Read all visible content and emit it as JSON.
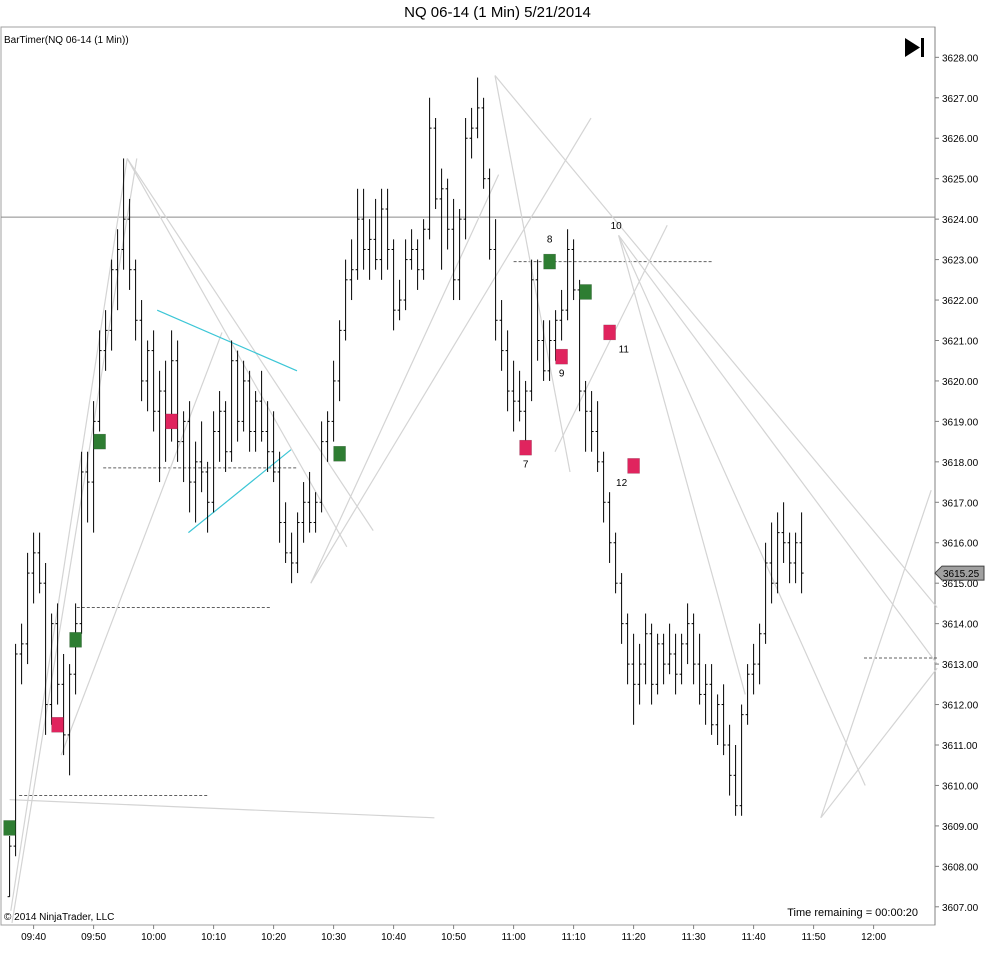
{
  "chart_data": {
    "type": "candlestick",
    "title": "NQ 06-14 (1 Min)  5/21/2014",
    "indicator_label": "BarTimer(NQ 06-14 (1 Min))",
    "copyright": "© 2014 NinjaTrader, LLC",
    "time_remaining": "Time remaining = 00:00:20",
    "last_price_label": "3615.25",
    "last_price": 3615.25,
    "ylim": [
      3606.55,
      3628.75
    ],
    "y_ticks": [
      "3607.00",
      "3608.00",
      "3609.00",
      "3610.00",
      "3611.00",
      "3612.00",
      "3613.00",
      "3614.00",
      "3615.00",
      "3616.00",
      "3617.00",
      "3618.00",
      "3619.00",
      "3620.00",
      "3621.00",
      "3622.00",
      "3623.00",
      "3624.00",
      "3625.00",
      "3626.00",
      "3627.00",
      "3628.00"
    ],
    "x_ticks": [
      {
        "label": "09:40",
        "bar": 4
      },
      {
        "label": "09:50",
        "bar": 14
      },
      {
        "label": "10:00",
        "bar": 24
      },
      {
        "label": "10:10",
        "bar": 34
      },
      {
        "label": "10:20",
        "bar": 44
      },
      {
        "label": "10:30",
        "bar": 54
      },
      {
        "label": "10:40",
        "bar": 64
      },
      {
        "label": "10:50",
        "bar": 74
      },
      {
        "label": "11:00",
        "bar": 84
      },
      {
        "label": "11:10",
        "bar": 94
      },
      {
        "label": "11:20",
        "bar": 104
      },
      {
        "label": "11:30",
        "bar": 114
      },
      {
        "label": "11:40",
        "bar": 124
      },
      {
        "label": "11:50",
        "bar": 134
      },
      {
        "label": "12:00",
        "bar": 144
      }
    ],
    "first_bar_time": "09:36",
    "bars": [
      [
        3607.25,
        3608.75,
        3607.25,
        3608.5
      ],
      [
        3608.5,
        3613.5,
        3608.25,
        3613.25
      ],
      [
        3613.25,
        3614.0,
        3612.5,
        3613.5
      ],
      [
        3613.5,
        3615.75,
        3613.0,
        3615.25
      ],
      [
        3615.25,
        3616.25,
        3614.5,
        3615.75
      ],
      [
        3615.75,
        3616.25,
        3614.75,
        3615.0
      ],
      [
        3615.0,
        3615.5,
        3611.25,
        3612.0
      ],
      [
        3612.0,
        3614.25,
        3611.5,
        3614.0
      ],
      [
        3614.0,
        3614.5,
        3612.0,
        3612.5
      ],
      [
        3612.5,
        3613.25,
        3610.75,
        3611.25
      ],
      [
        3611.25,
        3613.0,
        3610.25,
        3612.75
      ],
      [
        3612.75,
        3614.5,
        3612.25,
        3614.0
      ],
      [
        3614.0,
        3618.25,
        3613.75,
        3617.75
      ],
      [
        3617.75,
        3618.25,
        3616.5,
        3617.5
      ],
      [
        3617.5,
        3619.5,
        3616.25,
        3619.0
      ],
      [
        3619.0,
        3621.25,
        3618.75,
        3620.75
      ],
      [
        3620.75,
        3621.75,
        3620.25,
        3621.25
      ],
      [
        3621.25,
        3623.0,
        3620.75,
        3622.75
      ],
      [
        3622.75,
        3623.75,
        3621.75,
        3623.25
      ],
      [
        3623.25,
        3625.5,
        3622.75,
        3624.0
      ],
      [
        3624.0,
        3624.5,
        3622.25,
        3622.75
      ],
      [
        3622.75,
        3623.0,
        3621.0,
        3621.5
      ],
      [
        3621.5,
        3622.0,
        3619.5,
        3620.0
      ],
      [
        3620.0,
        3621.0,
        3619.25,
        3620.75
      ],
      [
        3620.75,
        3621.25,
        3618.75,
        3619.25
      ],
      [
        3619.25,
        3620.25,
        3617.5,
        3619.75
      ],
      [
        3619.75,
        3620.5,
        3618.0,
        3619.0
      ],
      [
        3619.0,
        3621.25,
        3618.5,
        3620.5
      ],
      [
        3620.5,
        3621.0,
        3618.0,
        3618.5
      ],
      [
        3618.5,
        3619.25,
        3617.5,
        3619.0
      ],
      [
        3619.0,
        3619.5,
        3616.75,
        3617.5
      ],
      [
        3617.5,
        3618.5,
        3616.5,
        3618.0
      ],
      [
        3618.0,
        3619.0,
        3617.25,
        3617.75
      ],
      [
        3617.75,
        3618.0,
        3616.25,
        3617.0
      ],
      [
        3617.0,
        3619.25,
        3616.75,
        3618.75
      ],
      [
        3618.75,
        3619.75,
        3618.0,
        3619.25
      ],
      [
        3619.25,
        3619.5,
        3617.75,
        3618.25
      ],
      [
        3618.25,
        3621.0,
        3618.0,
        3620.5
      ],
      [
        3620.5,
        3620.75,
        3618.5,
        3619.0
      ],
      [
        3619.0,
        3620.5,
        3618.75,
        3620.0
      ],
      [
        3620.0,
        3620.25,
        3618.25,
        3618.75
      ],
      [
        3618.75,
        3619.75,
        3618.25,
        3619.5
      ],
      [
        3619.5,
        3620.25,
        3618.5,
        3618.75
      ],
      [
        3618.75,
        3619.5,
        3617.75,
        3618.25
      ],
      [
        3618.25,
        3619.25,
        3617.5,
        3617.75
      ],
      [
        3617.75,
        3618.25,
        3616.0,
        3616.5
      ],
      [
        3616.5,
        3617.0,
        3615.5,
        3615.75
      ],
      [
        3615.75,
        3616.25,
        3615.0,
        3615.5
      ],
      [
        3615.5,
        3616.75,
        3615.25,
        3616.5
      ],
      [
        3616.5,
        3617.5,
        3616.0,
        3617.0
      ],
      [
        3617.0,
        3617.75,
        3616.25,
        3616.5
      ],
      [
        3616.5,
        3617.25,
        3616.25,
        3617.0
      ],
      [
        3617.0,
        3619.0,
        3616.75,
        3618.5
      ],
      [
        3618.5,
        3619.25,
        3618.0,
        3619.0
      ],
      [
        3619.0,
        3620.5,
        3618.5,
        3620.0
      ],
      [
        3620.0,
        3621.5,
        3619.5,
        3621.25
      ],
      [
        3621.25,
        3623.0,
        3621.0,
        3622.5
      ],
      [
        3622.5,
        3623.5,
        3622.0,
        3622.75
      ],
      [
        3622.75,
        3624.75,
        3622.5,
        3624.0
      ],
      [
        3624.0,
        3624.75,
        3622.75,
        3623.25
      ],
      [
        3623.25,
        3624.0,
        3622.5,
        3623.5
      ],
      [
        3623.5,
        3624.5,
        3622.75,
        3623.0
      ],
      [
        3623.0,
        3624.75,
        3622.5,
        3624.25
      ],
      [
        3624.25,
        3624.75,
        3622.75,
        3623.25
      ],
      [
        3623.25,
        3623.5,
        3621.25,
        3621.75
      ],
      [
        3621.75,
        3622.5,
        3621.5,
        3622.0
      ],
      [
        3622.0,
        3623.5,
        3621.75,
        3623.0
      ],
      [
        3623.0,
        3623.75,
        3622.75,
        3623.25
      ],
      [
        3623.25,
        3623.5,
        3622.25,
        3622.75
      ],
      [
        3622.75,
        3624.0,
        3622.5,
        3623.75
      ],
      [
        3623.75,
        3627.0,
        3623.5,
        3626.25
      ],
      [
        3626.25,
        3626.5,
        3624.25,
        3624.5
      ],
      [
        3624.5,
        3625.25,
        3622.75,
        3624.75
      ],
      [
        3624.75,
        3625.0,
        3623.25,
        3623.75
      ],
      [
        3623.75,
        3624.5,
        3622.0,
        3622.5
      ],
      [
        3622.5,
        3624.25,
        3622.0,
        3624.0
      ],
      [
        3624.0,
        3626.5,
        3623.5,
        3626.0
      ],
      [
        3626.0,
        3626.75,
        3625.5,
        3626.25
      ],
      [
        3626.25,
        3627.5,
        3626.0,
        3626.75
      ],
      [
        3626.75,
        3627.0,
        3624.75,
        3625.0
      ],
      [
        3625.0,
        3625.25,
        3623.0,
        3623.25
      ],
      [
        3623.25,
        3624.0,
        3621.0,
        3621.5
      ],
      [
        3621.5,
        3622.0,
        3620.25,
        3620.75
      ],
      [
        3620.75,
        3621.25,
        3619.25,
        3619.75
      ],
      [
        3619.75,
        3620.5,
        3618.75,
        3619.5
      ],
      [
        3619.5,
        3620.25,
        3619.0,
        3619.25
      ],
      [
        3619.25,
        3620.0,
        3618.5,
        3619.75
      ],
      [
        3619.75,
        3623.0,
        3619.5,
        3622.5
      ],
      [
        3622.5,
        3623.0,
        3620.5,
        3621.0
      ],
      [
        3621.0,
        3621.5,
        3620.0,
        3620.25
      ],
      [
        3620.25,
        3621.5,
        3620.0,
        3621.0
      ],
      [
        3621.0,
        3621.75,
        3620.5,
        3621.5
      ],
      [
        3621.5,
        3622.25,
        3621.0,
        3621.75
      ],
      [
        3621.75,
        3623.75,
        3621.5,
        3623.25
      ],
      [
        3623.25,
        3623.5,
        3622.0,
        3622.25
      ],
      [
        3622.25,
        3622.5,
        3619.25,
        3619.75
      ],
      [
        3619.75,
        3620.0,
        3618.25,
        3619.25
      ],
      [
        3619.25,
        3619.75,
        3618.25,
        3618.75
      ],
      [
        3618.75,
        3619.5,
        3617.75,
        3618.0
      ],
      [
        3618.0,
        3618.25,
        3616.5,
        3617.0
      ],
      [
        3617.0,
        3617.25,
        3615.5,
        3616.0
      ],
      [
        3616.0,
        3616.25,
        3614.75,
        3615.0
      ],
      [
        3615.0,
        3615.25,
        3613.5,
        3614.0
      ],
      [
        3614.0,
        3614.25,
        3612.5,
        3613.0
      ],
      [
        3613.0,
        3613.75,
        3611.5,
        3612.5
      ],
      [
        3612.5,
        3613.5,
        3612.0,
        3613.0
      ],
      [
        3613.0,
        3614.25,
        3612.5,
        3613.75
      ],
      [
        3613.75,
        3614.0,
        3612.0,
        3612.5
      ],
      [
        3612.5,
        3613.75,
        3612.25,
        3613.5
      ],
      [
        3613.5,
        3613.75,
        3612.5,
        3613.0
      ],
      [
        3613.0,
        3614.0,
        3612.75,
        3613.25
      ],
      [
        3613.25,
        3613.75,
        3612.25,
        3612.75
      ],
      [
        3612.75,
        3613.75,
        3612.5,
        3613.5
      ],
      [
        3613.5,
        3614.5,
        3613.0,
        3614.0
      ],
      [
        3614.0,
        3614.25,
        3612.5,
        3613.0
      ],
      [
        3613.0,
        3613.75,
        3612.0,
        3612.25
      ],
      [
        3612.25,
        3613.0,
        3611.5,
        3612.5
      ],
      [
        3612.5,
        3613.0,
        3611.25,
        3611.5
      ],
      [
        3611.5,
        3612.25,
        3611.0,
        3612.0
      ],
      [
        3612.0,
        3612.5,
        3610.75,
        3611.0
      ],
      [
        3611.0,
        3611.5,
        3609.75,
        3610.25
      ],
      [
        3610.25,
        3611.0,
        3609.25,
        3609.5
      ],
      [
        3609.5,
        3612.0,
        3609.25,
        3611.75
      ],
      [
        3611.75,
        3613.0,
        3611.5,
        3612.75
      ],
      [
        3612.75,
        3613.5,
        3612.25,
        3613.0
      ],
      [
        3613.0,
        3614.0,
        3612.5,
        3613.75
      ],
      [
        3613.75,
        3616.0,
        3613.5,
        3615.5
      ],
      [
        3615.5,
        3616.5,
        3614.5,
        3615.0
      ],
      [
        3615.0,
        3616.75,
        3614.75,
        3616.25
      ],
      [
        3616.25,
        3617.0,
        3615.5,
        3616.0
      ],
      [
        3616.0,
        3616.25,
        3615.0,
        3615.5
      ],
      [
        3615.5,
        3616.25,
        3615.0,
        3616.0
      ],
      [
        3616.0,
        3616.75,
        3614.75,
        3615.25
      ]
    ],
    "signals": [
      {
        "bar": 0,
        "price": 3608.95,
        "color": "#2e7d32",
        "label": ""
      },
      {
        "bar": 8,
        "price": 3611.5,
        "color": "#e0245e",
        "label": ""
      },
      {
        "bar": 11,
        "price": 3613.6,
        "color": "#2e7d32",
        "label": ""
      },
      {
        "bar": 15,
        "price": 3618.5,
        "color": "#2e7d32",
        "label": ""
      },
      {
        "bar": 27,
        "price": 3619.0,
        "color": "#e0245e",
        "label": ""
      },
      {
        "bar": 55,
        "price": 3618.2,
        "color": "#2e7d32",
        "label": ""
      },
      {
        "bar": 86,
        "price": 3618.35,
        "color": "#e0245e",
        "label": "7"
      },
      {
        "bar": 90,
        "price": 3622.95,
        "color": "#2e7d32",
        "label": "8"
      },
      {
        "bar": 92,
        "price": 3620.6,
        "color": "#e0245e",
        "label": "9"
      },
      {
        "bar": 96,
        "price": 3622.2,
        "color": "#2e7d32",
        "label": ""
      },
      {
        "bar": 100,
        "price": 3621.2,
        "color": "#e0245e",
        "label": "11"
      },
      {
        "bar": 104,
        "price": 3617.9,
        "color": "#e0245e",
        "label": "12"
      }
    ],
    "text_labels": [
      {
        "bar": 100,
        "price": 3623.85,
        "text": "10"
      }
    ],
    "trend_lines": [
      {
        "b1": 0.2,
        "p1": 3606.9,
        "b2": 19.6,
        "p2": 3625.5
      },
      {
        "b1": 0.4,
        "p1": 3606.6,
        "b2": 21.2,
        "p2": 3625.5
      },
      {
        "b1": 8.6,
        "p1": 3610.75,
        "b2": 35.4,
        "p2": 3621.2
      },
      {
        "b1": 19.6,
        "p1": 3625.5,
        "b2": 60.6,
        "p2": 3616.3
      },
      {
        "b1": 19.6,
        "p1": 3625.5,
        "b2": 56.2,
        "p2": 3615.9
      },
      {
        "b1": 0.0,
        "p1": 3609.65,
        "b2": 70.8,
        "p2": 3609.2
      },
      {
        "b1": 50.2,
        "p1": 3615.0,
        "b2": 81.5,
        "p2": 3625.1
      },
      {
        "b1": 50.2,
        "p1": 3615.0,
        "b2": 96.9,
        "p2": 3626.5
      },
      {
        "b1": 80.9,
        "p1": 3627.55,
        "b2": 93.4,
        "p2": 3617.75
      },
      {
        "b1": 80.9,
        "p1": 3627.55,
        "b2": 154.6,
        "p2": 3614.4
      },
      {
        "b1": 90.9,
        "p1": 3618.25,
        "b2": 109.6,
        "p2": 3623.85
      },
      {
        "b1": 101.5,
        "p1": 3623.6,
        "b2": 142.6,
        "p2": 3610.0
      },
      {
        "b1": 101.5,
        "p1": 3623.6,
        "b2": 154.6,
        "p2": 3613.0
      },
      {
        "b1": 101.5,
        "p1": 3623.6,
        "b2": 122.6,
        "p2": 3612.25
      },
      {
        "b1": 135.2,
        "p1": 3609.2,
        "b2": 153.6,
        "p2": 3617.3
      },
      {
        "b1": 135.2,
        "p1": 3609.2,
        "b2": 154.6,
        "p2": 3612.9
      }
    ],
    "cyan_lines": [
      {
        "b1": 24.6,
        "p1": 3621.75,
        "b2": 47.9,
        "p2": 3620.25
      },
      {
        "b1": 29.8,
        "p1": 3616.25,
        "b2": 46.9,
        "p2": 3618.3
      }
    ],
    "h_lines": [
      {
        "b1": 15.6,
        "b2": 47.9,
        "p": 3617.85
      },
      {
        "b1": 11.2,
        "b2": 43.4,
        "p": 3614.4
      },
      {
        "b1": 1.6,
        "b2": 33.2,
        "p": 3609.75
      },
      {
        "b1": 84.0,
        "b2": 117.2,
        "p": 3622.95
      },
      {
        "b1": 142.4,
        "b2": 154.6,
        "p": 3613.15
      }
    ],
    "solid_h_line": {
      "p": 3624.05
    }
  }
}
